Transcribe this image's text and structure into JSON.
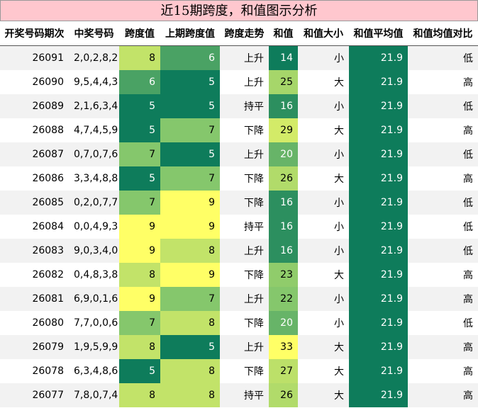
{
  "title": "近15期跨度，和值图示分析",
  "table": {
    "header": [
      "开奖号码期次",
      "中奖号码",
      "跨度值",
      "上期跨度值",
      "跨度走势",
      "和值",
      "和值大小",
      "和值平均值",
      "和值均值对比"
    ],
    "rows": [
      [
        26091,
        "2,0,2,8,2",
        8,
        6,
        "上升",
        14,
        "小",
        21.9,
        "低"
      ],
      [
        26090,
        "9,5,4,4,3",
        6,
        5,
        "上升",
        25,
        "大",
        21.9,
        "高"
      ],
      [
        26089,
        "2,1,6,3,4",
        5,
        5,
        "持平",
        16,
        "小",
        21.9,
        "低"
      ],
      [
        26088,
        "4,7,4,5,9",
        5,
        7,
        "下降",
        29,
        "大",
        21.9,
        "高"
      ],
      [
        26087,
        "0,7,0,7,6",
        7,
        5,
        "上升",
        20,
        "小",
        21.9,
        "低"
      ],
      [
        26086,
        "3,3,4,8,8",
        5,
        7,
        "下降",
        26,
        "大",
        21.9,
        "高"
      ],
      [
        26085,
        "0,2,0,7,7",
        7,
        9,
        "下降",
        16,
        "小",
        21.9,
        "低"
      ],
      [
        26084,
        "0,0,4,9,3",
        9,
        9,
        "持平",
        16,
        "小",
        21.9,
        "低"
      ],
      [
        26083,
        "9,0,3,4,0",
        9,
        8,
        "上升",
        16,
        "小",
        21.9,
        "低"
      ],
      [
        26082,
        "0,4,8,3,8",
        8,
        9,
        "下降",
        23,
        "大",
        21.9,
        "高"
      ],
      [
        26081,
        "6,9,0,1,6",
        9,
        7,
        "上升",
        22,
        "小",
        21.9,
        "高"
      ],
      [
        26080,
        "7,7,0,0,6",
        7,
        8,
        "下降",
        20,
        "小",
        21.9,
        "低"
      ],
      [
        26079,
        "1,9,5,9,9",
        8,
        5,
        "上升",
        33,
        "大",
        21.9,
        "高"
      ],
      [
        26078,
        "6,3,4,8,6",
        5,
        8,
        "下降",
        27,
        "大",
        21.9,
        "高"
      ],
      [
        26077,
        "7,8,0,7,4",
        8,
        8,
        "持平",
        26,
        "大",
        21.9,
        "高"
      ]
    ]
  }
}
